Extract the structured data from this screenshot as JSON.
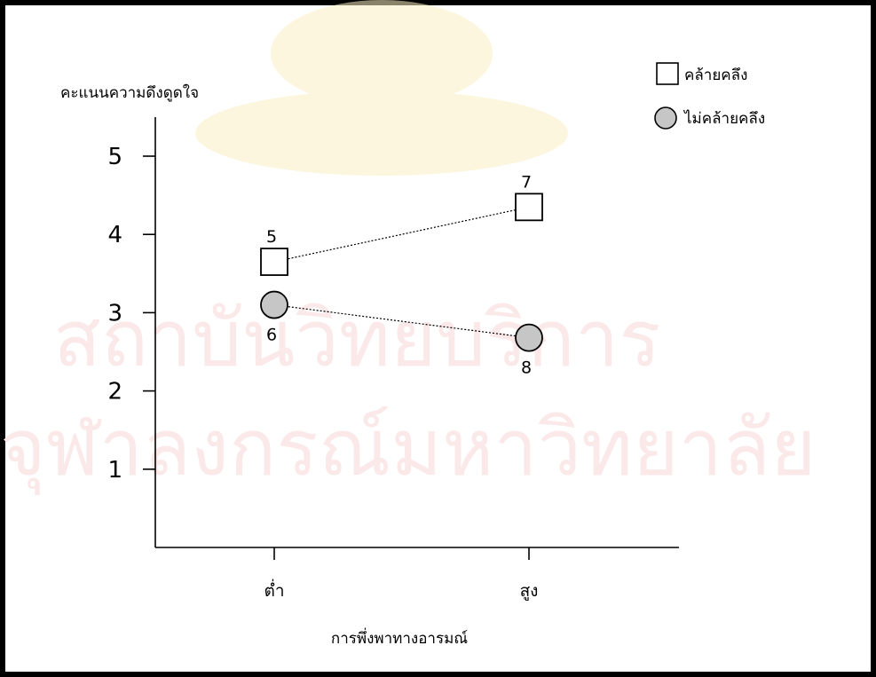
{
  "colors": {
    "background": "#ffffff",
    "frame": "#000000",
    "marker_fill_square": "#ffffff",
    "marker_fill_circle": "#c6c6c6",
    "watermark": "#fbe9e9"
  },
  "watermark": {
    "line1": "สถาบันวิทยบริการ",
    "line2": "จุฬาลงกรณ์มหาวิทยาลัย"
  },
  "chart_data": {
    "type": "line",
    "title": "",
    "xlabel": "การพึ่งพาทางอารมณ์",
    "ylabel": "คะแนนความดึงดูดใจ",
    "categories": [
      "ต่ำ",
      "สูง"
    ],
    "y_ticks": [
      "1",
      "2",
      "3",
      "4",
      "5"
    ],
    "ylim": [
      0,
      5.5
    ],
    "grid": false,
    "legend_position": "top-right",
    "series": [
      {
        "name": "คล้ายคลึง",
        "marker": "square",
        "line_style": "dotted",
        "values": [
          3.65,
          4.35
        ],
        "point_labels": [
          "5",
          "7"
        ],
        "label_position": "above"
      },
      {
        "name": "ไม่คล้ายคลึง",
        "marker": "circle",
        "line_style": "dotted",
        "values": [
          3.1,
          2.68
        ],
        "point_labels": [
          "6",
          "8"
        ],
        "label_position": "below"
      }
    ]
  }
}
